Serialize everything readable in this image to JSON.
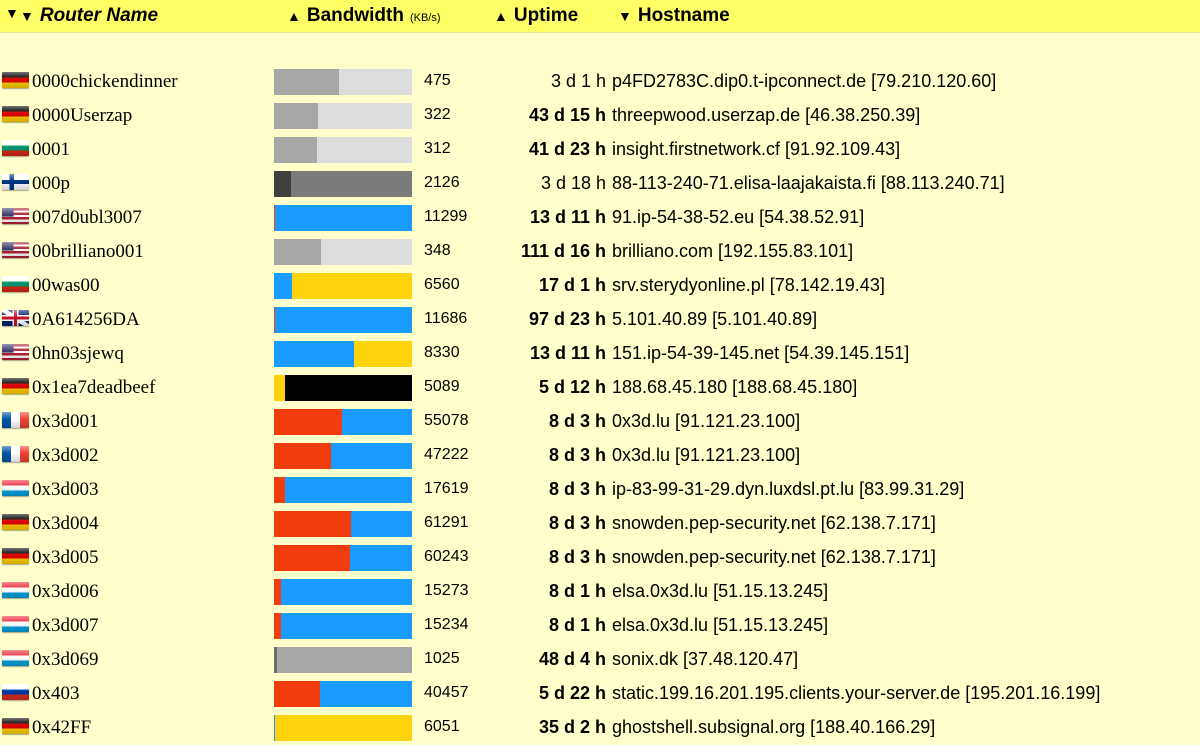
{
  "header": {
    "sort_icon": "sort-desc-icon",
    "name_label": "Router Name",
    "bandwidth_label": "Bandwidth",
    "bandwidth_unit": "(KB/s)",
    "uptime_label": "Uptime",
    "hostname_label": "Hostname",
    "arrow_down": "▼",
    "arrow_up": "▲"
  },
  "colors": {
    "header_bg": "#ffff66",
    "body_bg": "#ffffcc",
    "bar_blue": "#1a9bff",
    "bar_orange": "#f13d0e",
    "bar_yellow": "#ffd30b",
    "bar_gray": "#a7a7a7",
    "bar_lightgray": "#dddddd",
    "bar_darkgray": "#404040",
    "bar_midgray": "#7a7a7a",
    "bar_black": "#000000"
  },
  "routers": [
    {
      "name": "0000chickendinner",
      "flag": "de",
      "bandwidth": "475",
      "uptime": "3 d 1 h",
      "uptime_bold": false,
      "host": "p4FD2783C.dip0.t-ipconnect.de [79.210.120.60]",
      "bar": [
        [
          "#a7a7a7",
          0.47
        ],
        [
          "#dddddd",
          0.53
        ]
      ]
    },
    {
      "name": "0000Userzap",
      "flag": "de",
      "bandwidth": "322",
      "uptime": "43 d 15 h",
      "uptime_bold": true,
      "host": "threepwood.userzap.de [46.38.250.39]",
      "bar": [
        [
          "#a7a7a7",
          0.32
        ],
        [
          "#dddddd",
          0.68
        ]
      ]
    },
    {
      "name": "0001",
      "flag": "bg",
      "bandwidth": "312",
      "uptime": "41 d 23 h",
      "uptime_bold": true,
      "host": "insight.firstnetwork.cf [91.92.109.43]",
      "bar": [
        [
          "#a7a7a7",
          0.31
        ],
        [
          "#dddddd",
          0.69
        ]
      ]
    },
    {
      "name": "000p",
      "flag": "fi",
      "bandwidth": "2126",
      "uptime": "3 d 18 h",
      "uptime_bold": false,
      "host": "88-113-240-71.elisa-laajakaista.fi [88.113.240.71]",
      "bar": [
        [
          "#404040",
          0.12
        ],
        [
          "#7a7a7a",
          0.88
        ]
      ]
    },
    {
      "name": "007d0ubl3007",
      "flag": "us",
      "bandwidth": "11299",
      "uptime": "13 d 11 h",
      "uptime_bold": true,
      "host": "91.ip-54-38-52.eu [54.38.52.91]",
      "bar": [
        [
          "#f13d0e",
          0.01
        ],
        [
          "#1a9bff",
          0.99
        ]
      ]
    },
    {
      "name": "00brilliano001",
      "flag": "us",
      "bandwidth": "348",
      "uptime": "111 d 16 h",
      "uptime_bold": true,
      "host": "brilliano.com [192.155.83.101]",
      "bar": [
        [
          "#a7a7a7",
          0.34
        ],
        [
          "#dddddd",
          0.66
        ]
      ]
    },
    {
      "name": "00was00",
      "flag": "bg",
      "bandwidth": "6560",
      "uptime": "17 d 1 h",
      "uptime_bold": true,
      "host": "srv.sterydyonline.pl [78.142.19.43]",
      "bar": [
        [
          "#1a9bff",
          0.13
        ],
        [
          "#ffd30b",
          0.87
        ]
      ]
    },
    {
      "name": "0A614256DA",
      "flag": "gb",
      "bandwidth": "11686",
      "uptime": "97 d 23 h",
      "uptime_bold": true,
      "host": "5.101.40.89 [5.101.40.89]",
      "bar": [
        [
          "#f13d0e",
          0.01
        ],
        [
          "#1a9bff",
          0.99
        ]
      ]
    },
    {
      "name": "0hn03sjewq",
      "flag": "us",
      "bandwidth": "8330",
      "uptime": "13 d 11 h",
      "uptime_bold": true,
      "host": "151.ip-54-39-145.net [54.39.145.151]",
      "bar": [
        [
          "#1a9bff",
          0.58
        ],
        [
          "#ffd30b",
          0.42
        ]
      ]
    },
    {
      "name": "0x1ea7deadbeef",
      "flag": "de",
      "bandwidth": "5089",
      "uptime": "5 d 12 h",
      "uptime_bold": true,
      "host": "188.68.45.180 [188.68.45.180]",
      "bar": [
        [
          "#ffd30b",
          0.08
        ],
        [
          "#000000",
          0.92
        ]
      ]
    },
    {
      "name": "0x3d001",
      "flag": "fr",
      "bandwidth": "55078",
      "uptime": "8 d 3 h",
      "uptime_bold": true,
      "host": "0x3d.lu [91.121.23.100]",
      "bar": [
        [
          "#f13d0e",
          0.49
        ],
        [
          "#1a9bff",
          0.51
        ]
      ]
    },
    {
      "name": "0x3d002",
      "flag": "fr",
      "bandwidth": "47222",
      "uptime": "8 d 3 h",
      "uptime_bold": true,
      "host": "0x3d.lu [91.121.23.100]",
      "bar": [
        [
          "#f13d0e",
          0.41
        ],
        [
          "#1a9bff",
          0.59
        ]
      ]
    },
    {
      "name": "0x3d003",
      "flag": "lu",
      "bandwidth": "17619",
      "uptime": "8 d 3 h",
      "uptime_bold": true,
      "host": "ip-83-99-31-29.dyn.luxdsl.pt.lu [83.99.31.29]",
      "bar": [
        [
          "#f13d0e",
          0.08
        ],
        [
          "#1a9bff",
          0.92
        ]
      ]
    },
    {
      "name": "0x3d004",
      "flag": "de",
      "bandwidth": "61291",
      "uptime": "8 d 3 h",
      "uptime_bold": true,
      "host": "snowden.pep-security.net [62.138.7.171]",
      "bar": [
        [
          "#f13d0e",
          0.56
        ],
        [
          "#1a9bff",
          0.44
        ]
      ]
    },
    {
      "name": "0x3d005",
      "flag": "de",
      "bandwidth": "60243",
      "uptime": "8 d 3 h",
      "uptime_bold": true,
      "host": "snowden.pep-security.net [62.138.7.171]",
      "bar": [
        [
          "#f13d0e",
          0.55
        ],
        [
          "#1a9bff",
          0.45
        ]
      ]
    },
    {
      "name": "0x3d006",
      "flag": "lu",
      "bandwidth": "15273",
      "uptime": "8 d 1 h",
      "uptime_bold": true,
      "host": "elsa.0x3d.lu [51.15.13.245]",
      "bar": [
        [
          "#f13d0e",
          0.05
        ],
        [
          "#1a9bff",
          0.95
        ]
      ]
    },
    {
      "name": "0x3d007",
      "flag": "lu",
      "bandwidth": "15234",
      "uptime": "8 d 1 h",
      "uptime_bold": true,
      "host": "elsa.0x3d.lu [51.15.13.245]",
      "bar": [
        [
          "#f13d0e",
          0.05
        ],
        [
          "#1a9bff",
          0.95
        ]
      ]
    },
    {
      "name": "0x3d069",
      "flag": "lu",
      "bandwidth": "1025",
      "uptime": "48 d 4 h",
      "uptime_bold": true,
      "host": "sonix.dk [37.48.120.47]",
      "bar": [
        [
          "#6b6b6b",
          0.02
        ],
        [
          "#a7a7a7",
          0.98
        ]
      ]
    },
    {
      "name": "0x403",
      "flag": "ru",
      "bandwidth": "40457",
      "uptime": "5 d 22 h",
      "uptime_bold": true,
      "host": "static.199.16.201.195.clients.your-server.de [195.201.16.199]",
      "bar": [
        [
          "#f13d0e",
          0.33
        ],
        [
          "#1a9bff",
          0.67
        ]
      ]
    },
    {
      "name": "0x42FF",
      "flag": "de",
      "bandwidth": "6051",
      "uptime": "35 d 2 h",
      "uptime_bold": true,
      "host": "ghostshell.subsignal.org [188.40.166.29]",
      "bar": [
        [
          "#1a9bff",
          0.01
        ],
        [
          "#ffd30b",
          0.99
        ]
      ]
    }
  ]
}
